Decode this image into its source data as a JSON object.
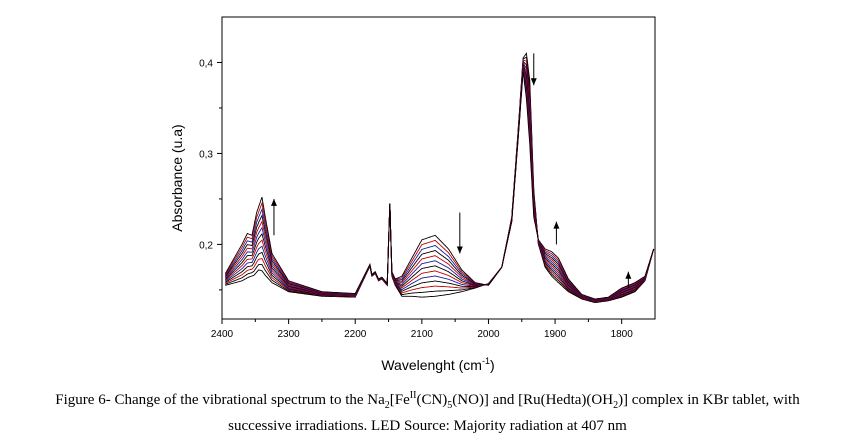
{
  "chart_data": {
    "type": "line",
    "xlabel_main": "Wavelenght (cm",
    "xlabel_sup": "-1",
    "xlabel_end": ")",
    "ylabel": "Absorbance (u.a)",
    "xlim": [
      2400,
      1750
    ],
    "ylim": [
      0.118,
      0.45
    ],
    "x_reversed": true,
    "x_ticks": [
      "2400",
      "2300",
      "2200",
      "2100",
      "2000",
      "1900",
      "1800"
    ],
    "x_tick_values": [
      2400,
      2300,
      2200,
      2100,
      2000,
      1900,
      1800
    ],
    "y_ticks": [
      "0,2",
      "0,3",
      "0,4"
    ],
    "y_tick_values": [
      0.2,
      0.3,
      0.4
    ],
    "grid": false,
    "n_spectra": 13,
    "series_colors": [
      "#000000",
      "#000000",
      "#c00000",
      "#000000",
      "#1a1aa0",
      "#c00000",
      "#000000",
      "#1a1aa0",
      "#c00000",
      "#000000",
      "#1a1aa0",
      "#c00000",
      "#000000"
    ],
    "reference_spectrum_first": {
      "x": [
        2395,
        2370,
        2360,
        2352,
        2345,
        2340,
        2335,
        2325,
        2300,
        2250,
        2200,
        2178,
        2175,
        2170,
        2165,
        2160,
        2152,
        2148,
        2145,
        2140,
        2130,
        2115,
        2100,
        2080,
        2060,
        2040,
        2020,
        2000,
        1980,
        1965,
        1955,
        1948,
        1943,
        1938,
        1932,
        1925,
        1915,
        1905,
        1895,
        1880,
        1860,
        1840,
        1820,
        1800,
        1780,
        1765,
        1752
      ],
      "y": [
        0.155,
        0.16,
        0.164,
        0.166,
        0.172,
        0.171,
        0.166,
        0.158,
        0.148,
        0.143,
        0.142,
        0.176,
        0.165,
        0.168,
        0.16,
        0.162,
        0.155,
        0.245,
        0.165,
        0.155,
        0.143,
        0.143,
        0.142,
        0.143,
        0.145,
        0.148,
        0.152,
        0.157,
        0.175,
        0.23,
        0.33,
        0.405,
        0.41,
        0.38,
        0.26,
        0.2,
        0.175,
        0.165,
        0.158,
        0.148,
        0.14,
        0.136,
        0.138,
        0.142,
        0.148,
        0.16,
        0.195
      ]
    },
    "reference_spectrum_last": {
      "x": [
        2395,
        2370,
        2362,
        2355,
        2348,
        2340,
        2335,
        2325,
        2300,
        2250,
        2200,
        2178,
        2175,
        2170,
        2165,
        2160,
        2152,
        2148,
        2145,
        2140,
        2130,
        2115,
        2100,
        2080,
        2060,
        2040,
        2020,
        2000,
        1980,
        1965,
        1955,
        1948,
        1943,
        1938,
        1932,
        1925,
        1915,
        1905,
        1895,
        1880,
        1860,
        1840,
        1820,
        1800,
        1780,
        1765,
        1752
      ],
      "y": [
        0.168,
        0.2,
        0.212,
        0.21,
        0.235,
        0.252,
        0.23,
        0.19,
        0.16,
        0.148,
        0.146,
        0.178,
        0.167,
        0.17,
        0.162,
        0.164,
        0.157,
        0.245,
        0.17,
        0.162,
        0.165,
        0.185,
        0.205,
        0.21,
        0.195,
        0.172,
        0.158,
        0.155,
        0.175,
        0.225,
        0.32,
        0.39,
        0.36,
        0.31,
        0.23,
        0.205,
        0.195,
        0.192,
        0.185,
        0.162,
        0.145,
        0.14,
        0.142,
        0.152,
        0.158,
        0.165,
        0.195
      ]
    },
    "arrows": [
      {
        "x": 2322,
        "y_from": 0.21,
        "y_to": 0.25,
        "direction": "up"
      },
      {
        "x": 2043,
        "y_from": 0.235,
        "y_to": 0.19,
        "direction": "down"
      },
      {
        "x": 1932,
        "y_from": 0.41,
        "y_to": 0.375,
        "direction": "down"
      },
      {
        "x": 1898,
        "y_from": 0.2,
        "y_to": 0.225,
        "direction": "up"
      },
      {
        "x": 1790,
        "y_from": 0.152,
        "y_to": 0.17,
        "direction": "up"
      }
    ]
  },
  "caption": {
    "part1": "Figure 6- Change of the vibrational spectrum to the Na",
    "sub1": "2",
    "part2": "[Fe",
    "sup1": "II",
    "part3": "(CN)",
    "sub2": "5",
    "part4": "(NO)] and [Ru(Hedta)(OH",
    "sub3": "2",
    "part5": ")] complex in KBr tablet, with",
    "line2": "successive irradiations. LED Source: Majority radiation at 407 nm"
  }
}
